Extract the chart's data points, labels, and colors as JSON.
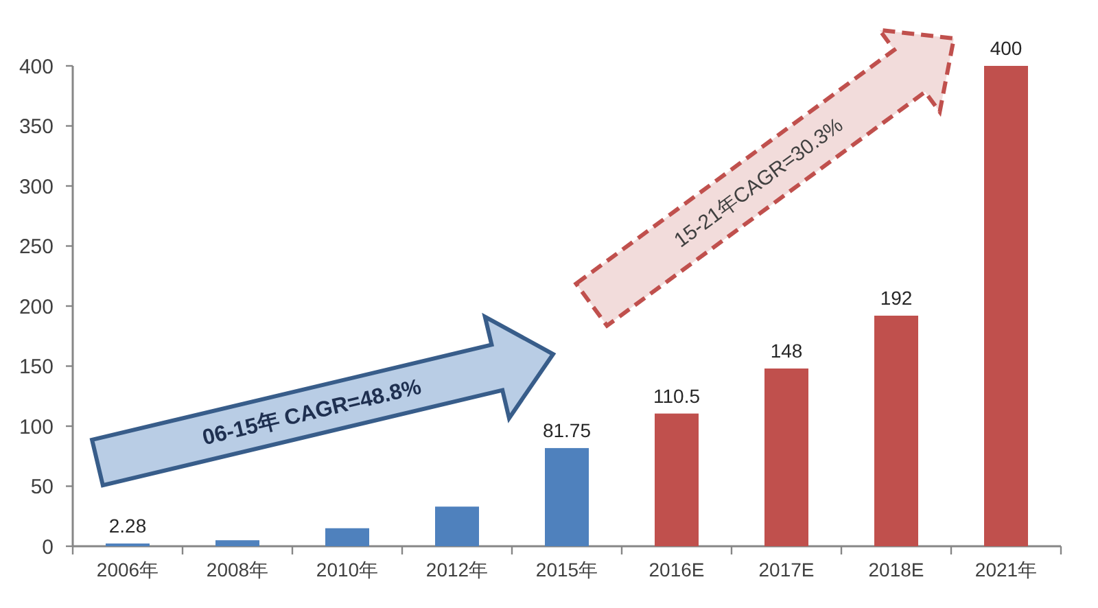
{
  "chart_data": {
    "type": "bar",
    "categories": [
      "2006年",
      "2008年",
      "2010年",
      "2012年",
      "2015年",
      "2016E",
      "2017E",
      "2018E",
      "2021年"
    ],
    "values": [
      2.28,
      5,
      15,
      33,
      81.75,
      110.5,
      148,
      192,
      400
    ],
    "colors": [
      "#4f81bd",
      "#4f81bd",
      "#4f81bd",
      "#4f81bd",
      "#4f81bd",
      "#c0504d",
      "#c0504d",
      "#c0504d",
      "#c0504d"
    ],
    "value_labels": [
      "2.28",
      null,
      null,
      null,
      "81.75",
      "110.5",
      "148",
      "192",
      "400"
    ],
    "ylim": [
      0,
      400
    ],
    "yticks": [
      0,
      50,
      100,
      150,
      200,
      250,
      300,
      350,
      400
    ],
    "annotations": [
      "06-15年 CAGR=48.8%",
      "15-21年CAGR=30.3%"
    ]
  }
}
